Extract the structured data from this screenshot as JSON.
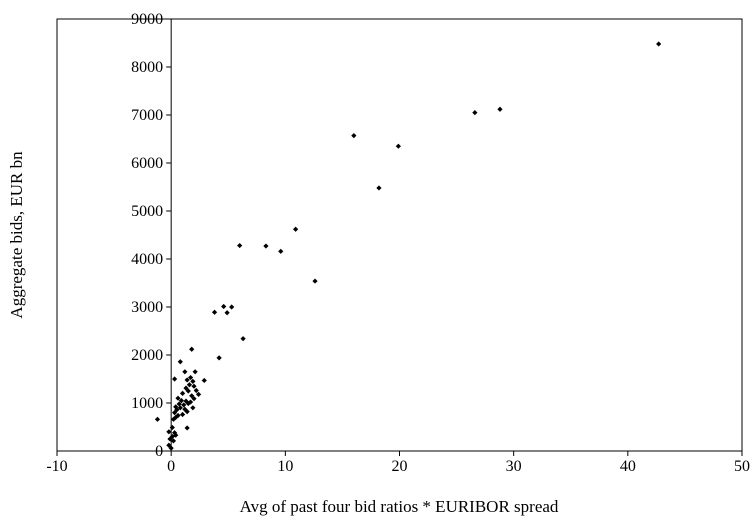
{
  "chart_data": {
    "type": "scatter",
    "xlabel": "Avg of past four bid ratios * EURIBOR spread",
    "ylabel": "Aggregate bids, EUR bn",
    "xlim": [
      -10,
      50
    ],
    "ylim": [
      0,
      9000
    ],
    "x_ticks": [
      -10,
      0,
      10,
      20,
      30,
      40,
      50
    ],
    "y_ticks": [
      0,
      1000,
      2000,
      3000,
      4000,
      5000,
      6000,
      7000,
      8000,
      9000
    ],
    "grid": false,
    "legend": "none",
    "marker": "diamond",
    "color": "#000000",
    "series": [
      {
        "points": [
          [
            42.7,
            8480
          ],
          [
            28.8,
            7120
          ],
          [
            26.6,
            7050
          ],
          [
            16.0,
            6570
          ],
          [
            19.9,
            6350
          ],
          [
            18.2,
            5480
          ],
          [
            10.9,
            4620
          ],
          [
            6.0,
            4280
          ],
          [
            8.3,
            4270
          ],
          [
            9.6,
            4160
          ],
          [
            12.6,
            3540
          ],
          [
            4.6,
            3010
          ],
          [
            5.3,
            3000
          ],
          [
            3.8,
            2890
          ],
          [
            4.9,
            2880
          ],
          [
            6.3,
            2340
          ],
          [
            4.2,
            1940
          ],
          [
            1.8,
            2120
          ],
          [
            0.8,
            1860
          ],
          [
            0.3,
            1500
          ],
          [
            1.2,
            1650
          ],
          [
            2.1,
            1650
          ],
          [
            1.7,
            1530
          ],
          [
            1.4,
            1480
          ],
          [
            1.9,
            1450
          ],
          [
            2.9,
            1470
          ],
          [
            1.6,
            1380
          ],
          [
            2.0,
            1350
          ],
          [
            1.3,
            1310
          ],
          [
            2.2,
            1260
          ],
          [
            1.5,
            1250
          ],
          [
            0.6,
            1100
          ],
          [
            1.0,
            1200
          ],
          [
            2.4,
            1180
          ],
          [
            1.8,
            1150
          ],
          [
            0.9,
            1050
          ],
          [
            1.3,
            1040
          ],
          [
            1.7,
            1020
          ],
          [
            2.0,
            1090
          ],
          [
            0.7,
            980
          ],
          [
            1.1,
            960
          ],
          [
            1.5,
            990
          ],
          [
            0.4,
            920
          ],
          [
            0.8,
            900
          ],
          [
            1.9,
            900
          ],
          [
            0.5,
            860
          ],
          [
            1.2,
            870
          ],
          [
            0.3,
            800
          ],
          [
            1.4,
            820
          ],
          [
            0.6,
            740
          ],
          [
            1.0,
            760
          ],
          [
            0.4,
            700
          ],
          [
            0.2,
            660
          ],
          [
            -1.2,
            660
          ],
          [
            1.4,
            480
          ],
          [
            0.1,
            490
          ],
          [
            -0.2,
            400
          ],
          [
            0.3,
            380
          ],
          [
            0.1,
            300
          ],
          [
            0.4,
            330
          ],
          [
            -0.1,
            250
          ],
          [
            0.2,
            210
          ],
          [
            -0.2,
            120
          ],
          [
            0.0,
            60
          ]
        ]
      }
    ]
  }
}
